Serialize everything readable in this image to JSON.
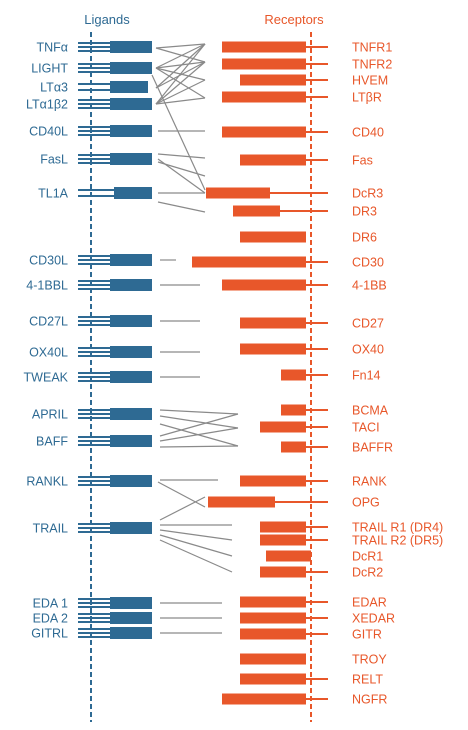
{
  "headers": {
    "ligands": "Ligands",
    "receptors": "Receptors"
  },
  "colors": {
    "ligand": "#2e6a93",
    "receptor": "#e8572a",
    "connector": "#8a8a8a"
  },
  "ligands": [
    "TNFα",
    "LIGHT",
    "LTα3",
    "LTα1β2",
    "CD40L",
    "FasL",
    "TL1A",
    "CD30L",
    "4-1BBL",
    "CD27L",
    "OX40L",
    "TWEAK",
    "APRIL",
    "BAFF",
    "RANKL",
    "TRAIL",
    "EDA 1",
    "EDA 2",
    "GITRL"
  ],
  "receptors": [
    "TNFR1",
    "TNFR2",
    "HVEM",
    "LTβR",
    "CD40",
    "Fas",
    "DcR3",
    "DR3",
    "DR6",
    "CD30",
    "4-1BB",
    "CD27",
    "OX40",
    "Fn14",
    "BCMA",
    "TACI",
    "BAFFR",
    "RANK",
    "OPG",
    "TRAIL R1 (DR4)",
    "TRAIL R2 (DR5)",
    "DcR1",
    "DcR2",
    "EDAR",
    "XEDAR",
    "GITR",
    "TROY",
    "RELT",
    "NGFR"
  ]
}
